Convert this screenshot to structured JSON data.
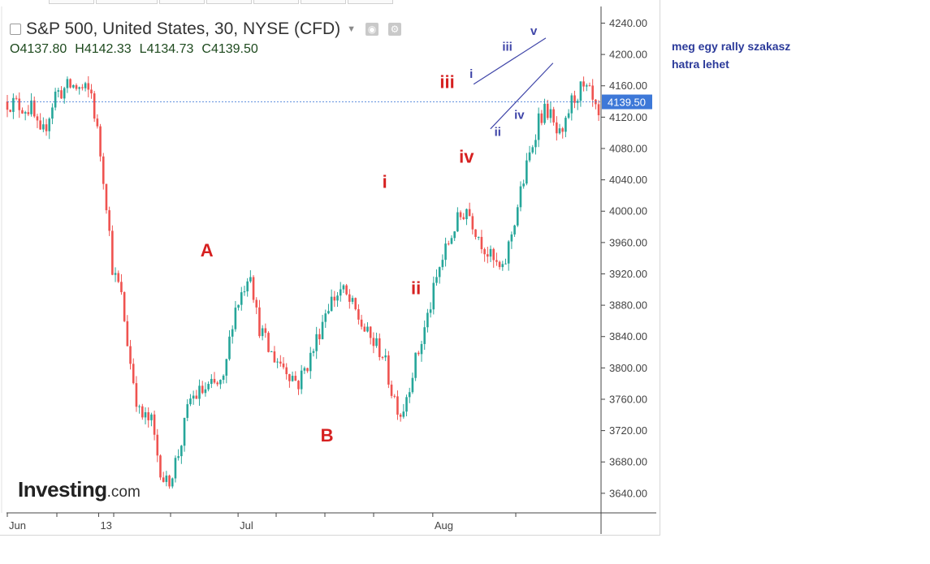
{
  "header": {
    "title": "S&P 500, United States, 30, NYSE (CFD)",
    "ohlc": {
      "open": "O4137.80",
      "high": "H4142.33",
      "low": "L4134.73",
      "close": "C4139.50"
    }
  },
  "logo": {
    "main": "Investing",
    "suffix": ".com"
  },
  "note": {
    "line1": "meg egy rally szakasz",
    "line2": "hatra lehet"
  },
  "colors": {
    "up": "#26a69a",
    "down": "#ef5350",
    "wave_red": "#d32f2f",
    "wave_blue": "#3f45a8",
    "price_tag": "#3d78d8",
    "label_red": "#d62020"
  },
  "chart_data": {
    "type": "candlestick",
    "title": "S&P 500, United States, 30, NYSE (CFD)",
    "ylim": [
      3615,
      4255
    ],
    "y_ticks": [
      3640,
      3680,
      3720,
      3760,
      3800,
      3840,
      3880,
      3920,
      3960,
      4000,
      4040,
      4080,
      4120,
      4160,
      4200,
      4240
    ],
    "y_tick_labels": [
      "3640.00",
      "3680.00",
      "3720.00",
      "3760.00",
      "3800.00",
      "3840.00",
      "3880.00",
      "3920.00",
      "3960.00",
      "4000.00",
      "4040.00",
      "4080.00",
      "4120.00",
      "4160.00",
      "4200.00",
      "4240.00"
    ],
    "x_labels": [
      "Jun",
      "13",
      "Jul",
      "Aug"
    ],
    "x_label_index": [
      0,
      38,
      96,
      177
    ],
    "n_bars": 205,
    "last_price": 4139.5,
    "last_price_label": "4139.50",
    "price_path": [
      [
        0,
        4140
      ],
      [
        10,
        4130
      ],
      [
        14,
        4090
      ],
      [
        20,
        4150
      ],
      [
        27,
        4160
      ],
      [
        35,
        4150
      ],
      [
        38,
        4090
      ],
      [
        41,
        4020
      ],
      [
        44,
        3920
      ],
      [
        47,
        3900
      ],
      [
        51,
        3810
      ],
      [
        55,
        3740
      ],
      [
        60,
        3730
      ],
      [
        63,
        3680
      ],
      [
        66,
        3650
      ],
      [
        69,
        3670
      ],
      [
        72,
        3700
      ],
      [
        76,
        3760
      ],
      [
        81,
        3770
      ],
      [
        85,
        3775
      ],
      [
        90,
        3780
      ],
      [
        94,
        3870
      ],
      [
        98,
        3900
      ],
      [
        101,
        3930
      ],
      [
        104,
        3860
      ],
      [
        109,
        3820
      ],
      [
        116,
        3800
      ],
      [
        121,
        3780
      ],
      [
        127,
        3820
      ],
      [
        133,
        3880
      ],
      [
        139,
        3900
      ],
      [
        145,
        3870
      ],
      [
        150,
        3840
      ],
      [
        156,
        3820
      ],
      [
        160,
        3770
      ],
      [
        164,
        3740
      ],
      [
        168,
        3790
      ],
      [
        172,
        3830
      ],
      [
        176,
        3880
      ],
      [
        180,
        3930
      ],
      [
        186,
        3980
      ],
      [
        191,
        4005
      ],
      [
        196,
        3970
      ],
      [
        201,
        3940
      ],
      [
        206,
        3920
      ],
      [
        210,
        3975
      ],
      [
        214,
        4030
      ],
      [
        218,
        4080
      ],
      [
        221,
        4120
      ],
      [
        225,
        4130
      ],
      [
        228,
        4100
      ],
      [
        231,
        4090
      ],
      [
        234,
        4135
      ],
      [
        238,
        4155
      ],
      [
        242,
        4150
      ],
      [
        246,
        4115
      ],
      [
        249,
        4130
      ],
      [
        252,
        4180
      ],
      [
        256,
        4140
      ]
    ],
    "annotations": [
      {
        "text": "A",
        "x": 83,
        "y": 3942,
        "color": "red"
      },
      {
        "text": "B",
        "x": 133,
        "y": 3706,
        "color": "red"
      },
      {
        "text": "i",
        "x": 157,
        "y": 4030,
        "color": "red"
      },
      {
        "text": "ii",
        "x": 170,
        "y": 3894,
        "color": "red"
      },
      {
        "text": "iii",
        "x": 183,
        "y": 4157,
        "color": "red"
      },
      {
        "text": "iv",
        "x": 191,
        "y": 4062,
        "color": "red"
      },
      {
        "text": "i",
        "x": 193,
        "y": 4170,
        "color": "blue"
      },
      {
        "text": "ii",
        "x": 204,
        "y": 4096,
        "color": "blue"
      },
      {
        "text": "iii",
        "x": 208,
        "y": 4205,
        "color": "blue"
      },
      {
        "text": "iv",
        "x": 213,
        "y": 4118,
        "color": "blue"
      },
      {
        "text": "v",
        "x": 219,
        "y": 4225,
        "color": "blue"
      }
    ],
    "trendlines": [
      {
        "from": [
          194,
          4162
        ],
        "to": [
          224,
          4221
        ]
      },
      {
        "from": [
          201,
          4105
        ],
        "to": [
          227,
          4189
        ]
      }
    ]
  }
}
